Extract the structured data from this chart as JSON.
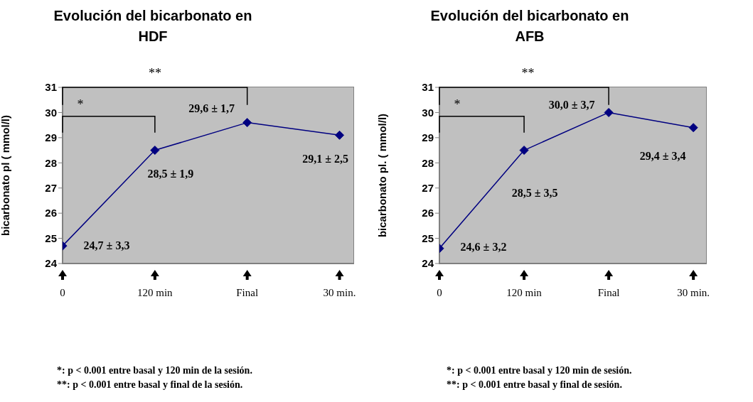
{
  "chart_data": [
    {
      "type": "line",
      "title": "Evolución del bicarbonato en HDF",
      "ylabel": "bicarbonato pl ( mmol/l)",
      "categories": [
        "0",
        "120 min",
        "Final",
        "30 min."
      ],
      "values": [
        24.7,
        28.5,
        29.6,
        29.1
      ],
      "color": "#000080",
      "marker": "diamond",
      "value_labels": [
        "24,7 ± 3,3",
        "28,5 ± 1,9",
        "29,6 ± 1,7",
        "29,1 ± 2,5"
      ],
      "ylim": [
        24,
        31
      ],
      "yticks": [
        24,
        25,
        26,
        27,
        28,
        29,
        30,
        31
      ],
      "grid": false,
      "annotations": [
        "*",
        "**",
        "*: p < 0.001 entre basal y 120 min de la sesión.",
        "**: p < 0.001 entre basal y final de la sesión."
      ]
    },
    {
      "type": "line",
      "title": "Evolución del bicarbonato en AFB",
      "ylabel": "bicarbonato pl. ( mmol/l)",
      "categories": [
        "0",
        "120 min",
        "Final",
        "30 min."
      ],
      "values": [
        24.6,
        28.5,
        30.0,
        29.4
      ],
      "color": "#000080",
      "marker": "diamond",
      "value_labels": [
        "24,6 ± 3,2",
        "28,5 ± 3,5",
        "30,0 ± 3,7",
        "29,4 ± 3,4"
      ],
      "ylim": [
        24,
        31
      ],
      "yticks": [
        24,
        25,
        26,
        27,
        28,
        29,
        30,
        31
      ],
      "grid": false,
      "annotations": [
        "*",
        "**",
        "*: p < 0.001 entre basal y 120 min de sesión.",
        "**: p < 0.001 entre basal y final de sesión."
      ]
    }
  ]
}
